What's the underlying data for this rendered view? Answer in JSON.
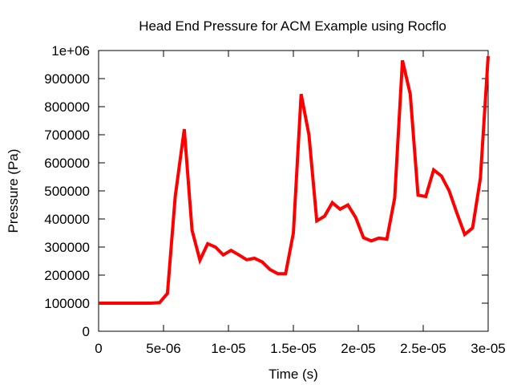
{
  "chart_data": {
    "type": "line",
    "title": "Head End Pressure for ACM Example using Rocflo",
    "xlabel": "Time (s)",
    "ylabel": "Pressure (Pa)",
    "xlim": [
      0,
      3e-05
    ],
    "ylim": [
      0,
      1000000
    ],
    "x_ticks": [
      0,
      5e-06,
      1e-05,
      1.5e-05,
      2e-05,
      2.5e-05,
      3e-05
    ],
    "x_tick_labels": [
      "0",
      "5e-06",
      "1e-05",
      "1.5e-05",
      "2e-05",
      "2.5e-05",
      "3e-05"
    ],
    "y_ticks": [
      0,
      100000,
      200000,
      300000,
      400000,
      500000,
      600000,
      700000,
      800000,
      900000,
      1000000
    ],
    "y_tick_labels": [
      "0",
      "100000",
      "200000",
      "300000",
      "400000",
      "500000",
      "600000",
      "700000",
      "800000",
      "900000",
      "1e+06"
    ],
    "grid": false,
    "legend": "none",
    "series": [
      {
        "color": "#ff0000",
        "x": [
          0,
          1e-06,
          2e-06,
          3e-06,
          4e-06,
          4.7e-06,
          5.3e-06,
          5.9e-06,
          6.6e-06,
          7.2e-06,
          7.8e-06,
          8.4e-06,
          9e-06,
          9.6e-06,
          1.02e-05,
          1.08e-05,
          1.14e-05,
          1.2e-05,
          1.26e-05,
          1.32e-05,
          1.38e-05,
          1.44e-05,
          1.5e-05,
          1.56e-05,
          1.62e-05,
          1.68e-05,
          1.74e-05,
          1.8e-05,
          1.86e-05,
          1.92e-05,
          1.98e-05,
          2.04e-05,
          2.1e-05,
          2.16e-05,
          2.22e-05,
          2.28e-05,
          2.34e-05,
          2.4e-05,
          2.46e-05,
          2.52e-05,
          2.58e-05,
          2.64e-05,
          2.7e-05,
          2.76e-05,
          2.82e-05,
          2.88e-05,
          2.94e-05,
          3e-05
        ],
        "y": [
          100000,
          100000,
          100000,
          100000,
          100000,
          102000,
          135000,
          480000,
          720000,
          360000,
          253000,
          312000,
          300000,
          272000,
          288000,
          272000,
          255000,
          260000,
          247000,
          220000,
          205000,
          205000,
          350000,
          845000,
          700000,
          393000,
          410000,
          458000,
          435000,
          450000,
          405000,
          333000,
          322000,
          332000,
          328000,
          475000,
          965000,
          845000,
          485000,
          480000,
          575000,
          553000,
          500000,
          420000,
          345000,
          368000,
          545000,
          980000
        ]
      }
    ]
  }
}
